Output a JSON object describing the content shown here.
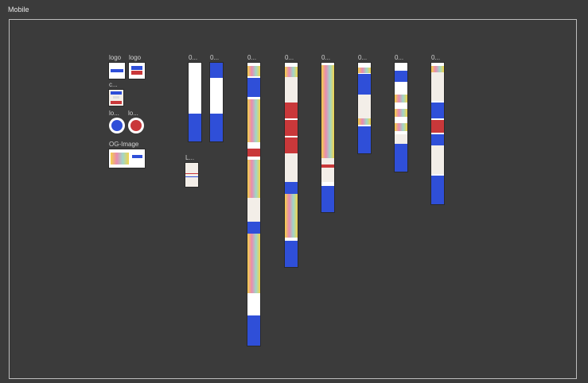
{
  "canvas": {
    "section_title": "Mobile"
  },
  "assets": [
    {
      "label": "logo"
    },
    {
      "label": "logo"
    },
    {
      "label": "c..."
    },
    {
      "label": "lo..."
    },
    {
      "label": "lo..."
    },
    {
      "label": "OG-Image"
    }
  ],
  "frames": [
    {
      "label": "0..."
    },
    {
      "label": "0..."
    },
    {
      "label": "L..."
    },
    {
      "label": "0..."
    },
    {
      "label": "0..."
    },
    {
      "label": "0..."
    },
    {
      "label": "0..."
    },
    {
      "label": "0..."
    },
    {
      "label": "0..."
    }
  ],
  "colors": {
    "brand_blue": "#2f4fd8",
    "brand_red": "#c9383a",
    "canvas": "#3b3b3b"
  }
}
